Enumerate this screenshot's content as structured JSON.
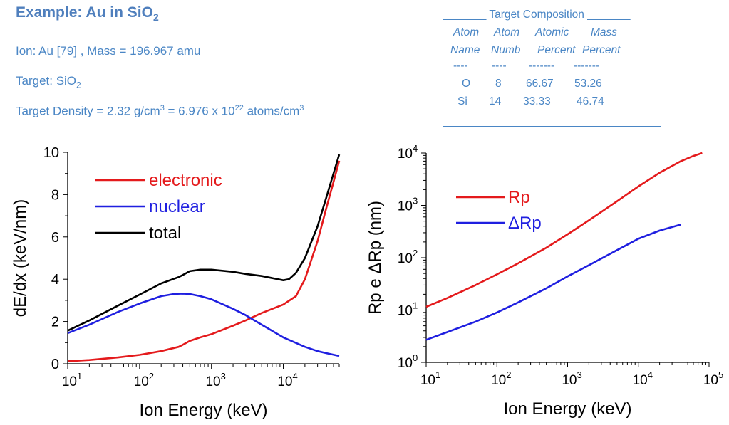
{
  "header": {
    "title_main": "Example: Au in SiO",
    "title_sub": "2",
    "ion_line": "Ion: Au [79] , Mass = 196.967 amu",
    "target_prefix": "Target: SiO",
    "target_sub": "2",
    "density_a": "Target Density =  2.32 g/cm",
    "density_b": "3",
    "density_c": " = 6.976 x 10",
    "density_d": "22",
    "density_e": " atoms/cm",
    "density_f": "3"
  },
  "composition": {
    "heading": "_______ Target  Composition _______",
    "col1_top": "Atom",
    "col2_top": "Atom",
    "col3_top": "Atomic",
    "col4_top": "Mass",
    "col1_bot": "Name",
    "col2_bot": "Numb",
    "col3_bot": "Percent",
    "col4_bot": "Percent",
    "dash1": "----",
    "dash2": "----",
    "dash3": "-------",
    "dash4": "-------",
    "rows": [
      {
        "name": "O",
        "numb": "8",
        "atomic": "66.67",
        "mass": "53.26"
      },
      {
        "name": "Si",
        "numb": "14",
        "atomic": "33.33",
        "mass": "46.74"
      }
    ]
  },
  "chart_data": [
    {
      "type": "line",
      "xlabel": "Ion Energy (keV)",
      "ylabel": "dE/dx (keV/nm)",
      "xscale": "log",
      "xlim": [
        10,
        60000
      ],
      "ylim": [
        0,
        10
      ],
      "xticks": [
        {
          "v": 10,
          "base": "10",
          "exp": "1"
        },
        {
          "v": 100,
          "base": "10",
          "exp": "2"
        },
        {
          "v": 1000,
          "base": "10",
          "exp": "3"
        },
        {
          "v": 10000,
          "base": "10",
          "exp": "4"
        }
      ],
      "yticks": [
        {
          "v": 0,
          "label": "0"
        },
        {
          "v": 2,
          "label": "2"
        },
        {
          "v": 4,
          "label": "4"
        },
        {
          "v": 6,
          "label": "6"
        },
        {
          "v": 8,
          "label": "8"
        },
        {
          "v": 10,
          "label": "10"
        }
      ],
      "legend_position": "top-left",
      "series": [
        {
          "name": "electronic",
          "color": "#e41a1c",
          "x": [
            10,
            20,
            50,
            100,
            200,
            350,
            400,
            500,
            700,
            1000,
            2000,
            3000,
            5000,
            10000,
            15000,
            20000,
            30000,
            40000,
            50000,
            60000
          ],
          "y": [
            0.12,
            0.18,
            0.3,
            0.42,
            0.6,
            0.8,
            0.9,
            1.08,
            1.25,
            1.4,
            1.8,
            2.05,
            2.4,
            2.8,
            3.2,
            4.0,
            5.8,
            7.4,
            8.6,
            9.6
          ]
        },
        {
          "name": "nuclear",
          "color": "#1f1fe0",
          "x": [
            10,
            20,
            50,
            100,
            200,
            300,
            400,
            500,
            700,
            1000,
            2000,
            3000,
            5000,
            10000,
            20000,
            30000,
            40000,
            60000
          ],
          "y": [
            1.45,
            1.85,
            2.45,
            2.85,
            3.2,
            3.3,
            3.32,
            3.3,
            3.2,
            3.05,
            2.6,
            2.3,
            1.85,
            1.25,
            0.8,
            0.6,
            0.5,
            0.37
          ]
        },
        {
          "name": "total",
          "color": "#000000",
          "x": [
            10,
            20,
            50,
            100,
            200,
            350,
            400,
            500,
            700,
            1000,
            2000,
            3000,
            5000,
            10000,
            12000,
            15000,
            20000,
            30000,
            40000,
            50000,
            60000
          ],
          "y": [
            1.57,
            2.05,
            2.75,
            3.27,
            3.8,
            4.1,
            4.2,
            4.38,
            4.45,
            4.45,
            4.35,
            4.25,
            4.15,
            3.95,
            4.0,
            4.3,
            5.0,
            6.5,
            7.9,
            9.0,
            9.9
          ]
        }
      ]
    },
    {
      "type": "line",
      "xlabel": "Ion Energy (keV)",
      "ylabel": "Rp e ΔRp (nm)",
      "xscale": "log",
      "yscale": "log",
      "xlim": [
        10,
        100000
      ],
      "ylim": [
        1,
        10000
      ],
      "xticks": [
        {
          "v": 10,
          "base": "10",
          "exp": "1"
        },
        {
          "v": 100,
          "base": "10",
          "exp": "2"
        },
        {
          "v": 1000,
          "base": "10",
          "exp": "3"
        },
        {
          "v": 10000,
          "base": "10",
          "exp": "4"
        },
        {
          "v": 100000,
          "base": "10",
          "exp": "5"
        }
      ],
      "yticks": [
        {
          "v": 1,
          "base": "10",
          "exp": "0"
        },
        {
          "v": 10,
          "base": "10",
          "exp": "1"
        },
        {
          "v": 100,
          "base": "10",
          "exp": "2"
        },
        {
          "v": 1000,
          "base": "10",
          "exp": "3"
        },
        {
          "v": 10000,
          "base": "10",
          "exp": "4"
        }
      ],
      "legend_position": "top-left",
      "series": [
        {
          "name": "Rp",
          "color": "#e41a1c",
          "x": [
            10,
            20,
            50,
            100,
            200,
            500,
            1000,
            2000,
            5000,
            10000,
            20000,
            40000,
            60000,
            80000
          ],
          "y": [
            11.5,
            17,
            30,
            48,
            78,
            155,
            280,
            520,
            1200,
            2300,
            4200,
            7000,
            8800,
            10000
          ]
        },
        {
          "name": "ΔRp",
          "color": "#1f1fe0",
          "x": [
            10,
            20,
            50,
            100,
            200,
            500,
            1000,
            2000,
            5000,
            10000,
            20000,
            40000
          ],
          "y": [
            2.7,
            3.8,
            6.0,
            9.0,
            14,
            26,
            44,
            72,
            140,
            230,
            330,
            430
          ]
        }
      ]
    }
  ]
}
